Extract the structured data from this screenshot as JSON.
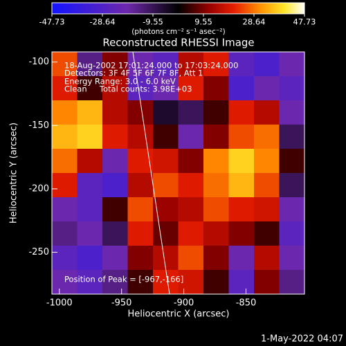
{
  "chart_data": {
    "type": "heatmap",
    "title": "Reconstructed RHESSI Image",
    "x_label": "Heliocentric X (arcsec)",
    "y_label": "Heliocentric Y (arcsec)",
    "colorbar_label": "(photons cm⁻² s⁻¹ asec⁻²)",
    "annotations": [
      "18-Aug-2002 17:01:24.000 to 17:03:24.000",
      "Detectors: 3F 4F 5F 6F 7F 8F, Att 1",
      "Energy Range: 3.0 - 6.0 keV",
      "Clean     Total counts: 3.98E+03"
    ],
    "peak_label": "Position of Peak = [-967,-166]",
    "footer": "1-May-2022 04:07",
    "xlim": [
      -1006,
      -803
    ],
    "ylim": [
      -283,
      -92
    ],
    "xticks": [
      -1000,
      -950,
      -900,
      -850
    ],
    "yticks": [
      -100,
      -150,
      -200,
      -250
    ],
    "clim": [
      -47.73,
      47.73
    ],
    "cticks": [
      -47.73,
      -28.64,
      -9.55,
      9.55,
      28.64,
      47.73
    ],
    "z": [
      [
        25,
        -15,
        10,
        -20,
        -25,
        15,
        20,
        -25,
        -30,
        -20
      ],
      [
        20,
        5,
        15,
        -25,
        -20,
        20,
        10,
        -30,
        -20,
        -25
      ],
      [
        30,
        35,
        15,
        10,
        -5,
        -10,
        5,
        20,
        15,
        -20
      ],
      [
        35,
        38,
        20,
        15,
        5,
        -20,
        10,
        25,
        28,
        -10
      ],
      [
        28,
        15,
        -20,
        20,
        18,
        10,
        30,
        38,
        30,
        5
      ],
      [
        20,
        -25,
        -30,
        15,
        25,
        20,
        28,
        35,
        25,
        -10
      ],
      [
        -20,
        -25,
        5,
        25,
        12,
        15,
        25,
        20,
        18,
        -20
      ],
      [
        -15,
        -20,
        -10,
        20,
        8,
        20,
        15,
        10,
        5,
        -25
      ],
      [
        -25,
        -30,
        -20,
        10,
        15,
        25,
        10,
        -20,
        15,
        -20
      ],
      [
        -20,
        -25,
        -15,
        5,
        20,
        18,
        5,
        -25,
        10,
        -15
      ]
    ]
  }
}
